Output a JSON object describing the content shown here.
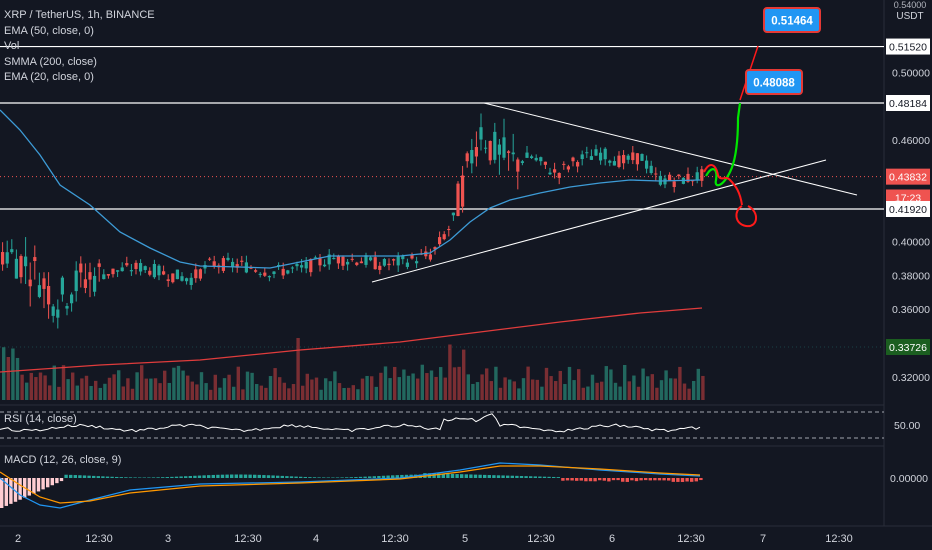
{
  "legend": {
    "symbol": "XRP / TetherUS, 1h, BINANCE",
    "ema50": "EMA (50, close, 0)",
    "vol": "Vol",
    "smma": "SMMA (200, close)",
    "ema20": "EMA (20, close, 0)"
  },
  "axis_unit": {
    "top": "0.54000",
    "unit": "USDT"
  },
  "rsi_label": "RSI (14, close)",
  "macd_label": "MACD (12, 26, close, 9)",
  "colors": {
    "background": "#131722",
    "up": "#26a69a",
    "down": "#ef5350",
    "ema50": "#3d9bd6",
    "smma200": "#e03c3c",
    "annotation_green": "#00e600",
    "annotation_red": "#ff1a1a",
    "callout_blue": "#2196f3"
  },
  "chart_data": [
    {
      "type": "candlestick",
      "title": "XRP / TetherUS, 1h, BINANCE",
      "x_ticks": [
        "2",
        "12:30",
        "3",
        "12:30",
        "4",
        "12:30",
        "5",
        "12:30",
        "6",
        "12:30",
        "7",
        "12:30"
      ],
      "y_ticks": [
        0.32,
        0.34,
        0.36,
        0.38,
        0.4,
        0.42,
        0.44,
        0.46,
        0.48,
        0.5,
        0.52
      ],
      "y_tick_labels": [
        "0.32000",
        "0.34000",
        "0.36000",
        "0.38000",
        "0.40000",
        "0.41920",
        "0.43832",
        "0.46000",
        "0.48184",
        "0.50000",
        "0.51520"
      ],
      "ylim": [
        0.305,
        0.545
      ],
      "price_labels": [
        {
          "value": 0.5152,
          "text": "0.51520",
          "style": "white"
        },
        {
          "value": 0.48184,
          "text": "0.48184",
          "style": "white"
        },
        {
          "value": 0.43832,
          "text": "0.43832",
          "style": "red"
        },
        {
          "value": 0.426,
          "text": "17:23",
          "style": "red"
        },
        {
          "value": 0.4192,
          "text": "0.41920",
          "style": "white"
        },
        {
          "value": 0.33726,
          "text": "0.33726",
          "style": "green"
        }
      ],
      "horizontal_lines": [
        0.5152,
        0.48184,
        0.4192
      ],
      "current_price": 0.43832,
      "callouts": [
        {
          "text": "0.51464",
          "value": 0.51464
        },
        {
          "text": "0.48088",
          "value": 0.48088
        }
      ],
      "triangle": {
        "upper": [
          {
            "x": "Jan 5 03:00",
            "y": 0.482
          },
          {
            "x": "Jan 7 13:00",
            "y": 0.428
          }
        ],
        "lower": [
          {
            "x": "Jan 4 11:00",
            "y": 0.377
          },
          {
            "x": "Jan 7 15:00",
            "y": 0.447
          }
        ]
      },
      "series": [
        {
          "name": "EMA (50, close, 0)",
          "kind": "line"
        },
        {
          "name": "SMMA (200, close)",
          "kind": "line"
        },
        {
          "name": "Vol",
          "kind": "bars"
        }
      ]
    },
    {
      "type": "line",
      "title": "RSI (14, close)",
      "y_tick_labels": [
        "50.00"
      ],
      "bands": [
        70,
        30
      ]
    },
    {
      "type": "bar",
      "title": "MACD (12, 26, close, 9)",
      "y_tick_labels": [
        "0.00000"
      ]
    }
  ]
}
